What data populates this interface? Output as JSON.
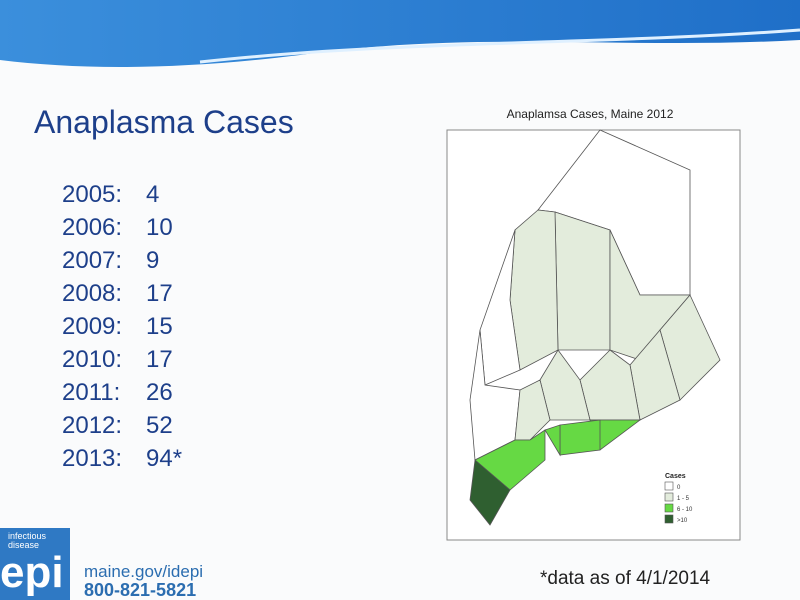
{
  "slide": {
    "title": "Anaplasma Cases",
    "cases": [
      {
        "year": "2005:",
        "count": 4
      },
      {
        "year": "2006:",
        "count": 10
      },
      {
        "year": "2007:",
        "count": 9
      },
      {
        "year": "2008:",
        "count": 17
      },
      {
        "year": "2009:",
        "count": 15
      },
      {
        "year": "2010:",
        "count": 17
      },
      {
        "year": "2011:",
        "count": 26
      },
      {
        "year": "2012:",
        "count": 52
      },
      {
        "year": "2013:",
        "count": "94*"
      }
    ],
    "map": {
      "title": "Anaplamsa Cases, Maine 2012",
      "legend": {
        "title": "Cases",
        "items": [
          {
            "label": "0",
            "color": "#ffffff"
          },
          {
            "label": "1 - 5",
            "color": "#e3ecdc"
          },
          {
            "label": "6 - 10",
            "color": "#66d944"
          },
          {
            "label": ">10",
            "color": "#2f5f30"
          }
        ]
      }
    },
    "footnote": "*data as of 4/1/2014",
    "logo": {
      "tagline": "infectious disease",
      "word": "epi",
      "url": "maine.gov/idepi",
      "phone": "800-821-5821"
    }
  }
}
